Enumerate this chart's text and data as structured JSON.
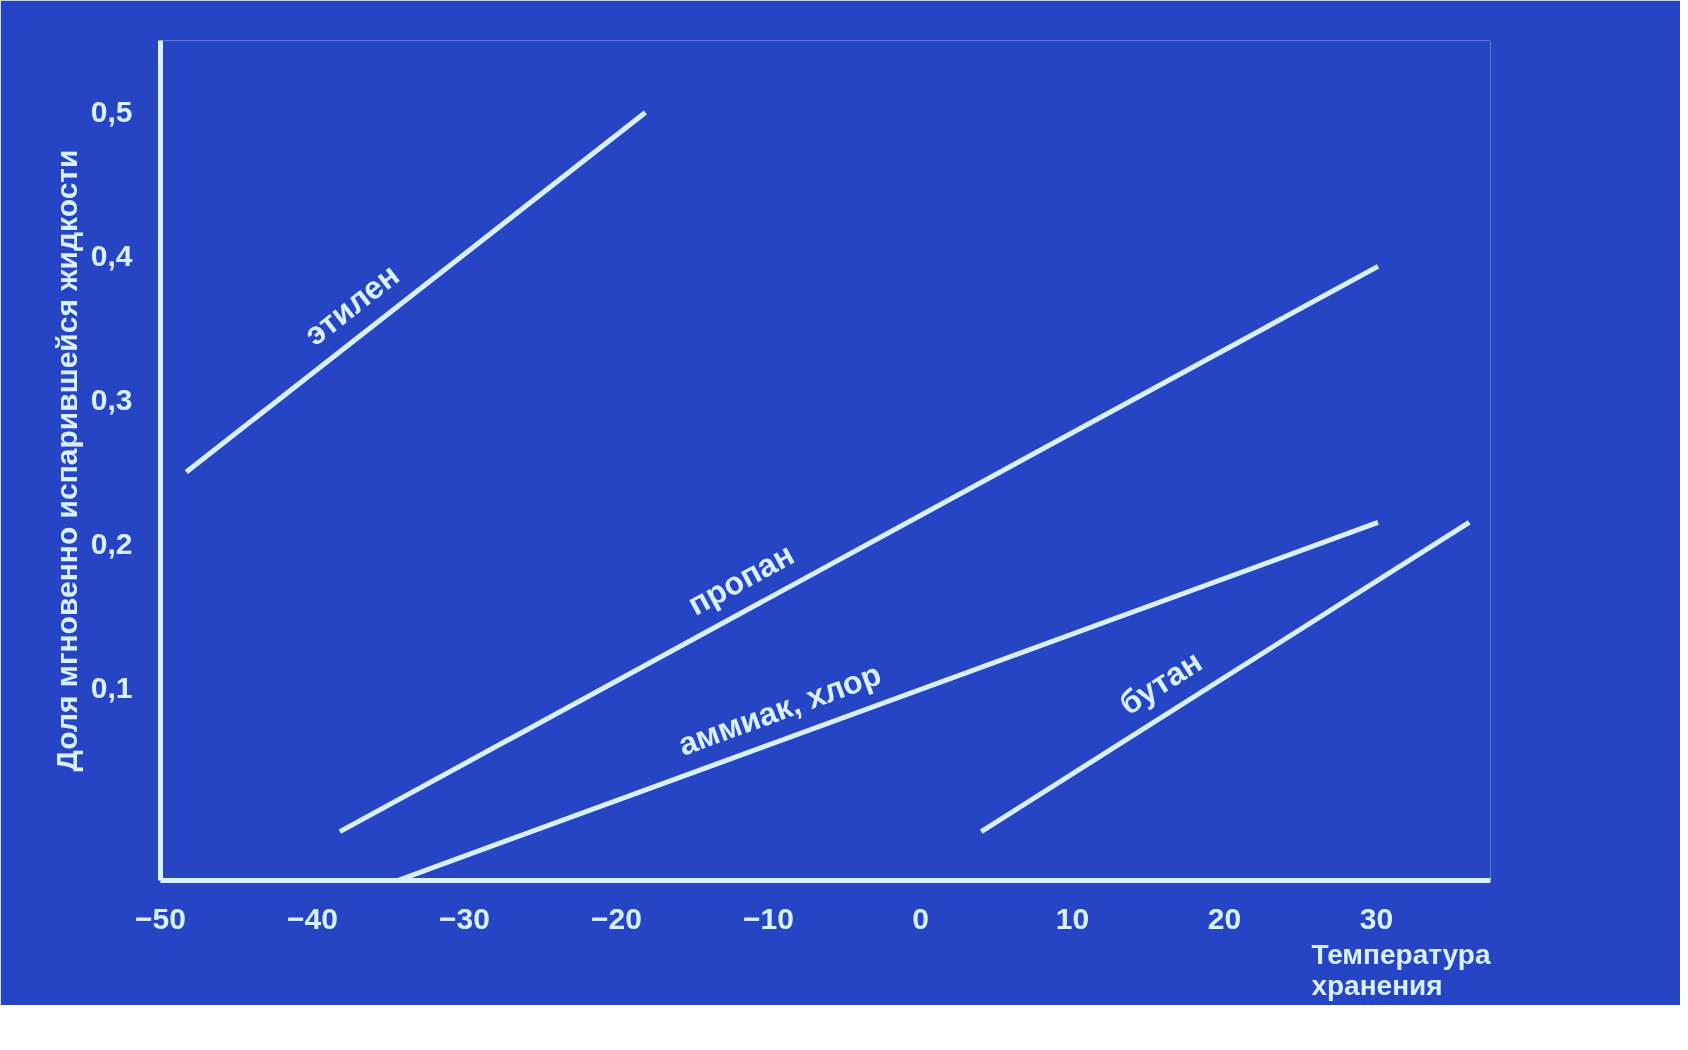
{
  "chart_data": {
    "type": "line",
    "xlabel": "Температура хранения",
    "ylabel": "Доля мгновенно испарившейся жидкости",
    "xlim": [
      -50,
      37.5
    ],
    "ylim": [
      -0.034,
      0.55
    ],
    "xticks": [
      -50,
      -40,
      -30,
      -20,
      -10,
      0,
      10,
      20,
      30
    ],
    "yticks": [
      {
        "value": 0.1,
        "label": "0,1"
      },
      {
        "value": 0.2,
        "label": "0,2"
      },
      {
        "value": 0.3,
        "label": "0,3"
      },
      {
        "value": 0.4,
        "label": "0,4"
      },
      {
        "value": 0.5,
        "label": "0,5"
      }
    ],
    "grid": false,
    "marker": "none",
    "line_style": "solid",
    "series": [
      {
        "name": "этилен",
        "color": "#d8f0ff",
        "x": [
          -48.3,
          -18.1
        ],
        "values": [
          0.25,
          0.5
        ]
      },
      {
        "name": "пропан",
        "color": "#d8f0ff",
        "x": [
          -38.2,
          30.1
        ],
        "values": [
          0.0,
          0.393
        ]
      },
      {
        "name": "аммиак, хлор",
        "color": "#d8f0ff",
        "x": [
          -34.4,
          30.1
        ],
        "values": [
          -0.034,
          0.215
        ]
      },
      {
        "name": "бутан",
        "color": "#d8f0ff",
        "x": [
          4.0,
          36.1
        ],
        "values": [
          0.0,
          0.215
        ]
      }
    ]
  }
}
